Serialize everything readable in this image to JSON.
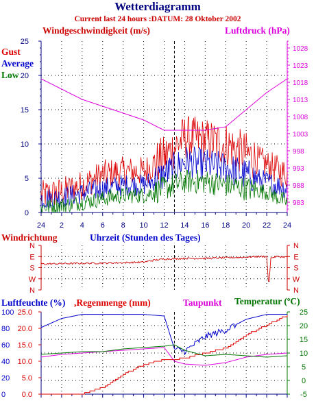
{
  "title": "Wetterdiagramm",
  "subtitle": "Current last 24 hours :DATUM: 28 Oktober 2002",
  "colors": {
    "axis_blue": "#000080",
    "wind_title": "#cc0000",
    "pressure": "#dd00dd",
    "gust": "#dd0000",
    "average": "#0000cc",
    "low": "#007700",
    "grid": "#000000",
    "humidity": "#0000cc",
    "rain": "#dd0000",
    "dewpoint": "#dd00dd",
    "temperature": "#007700"
  },
  "panels": {
    "wind": {
      "title_left": "Windgeschwindigkeit (m/s)",
      "title_right": "Luftdruck (hPa)",
      "legend": [
        "Gust",
        "Average",
        "Low"
      ],
      "x_ticks": [
        "24",
        "2",
        "4",
        "6",
        "8",
        "10",
        "12",
        "14",
        "16",
        "18",
        "20",
        "22",
        "24"
      ],
      "y_left_ticks": [
        "0",
        "5",
        "10",
        "15",
        "20",
        "25"
      ],
      "y_right_ticks": [
        "983",
        "988",
        "993",
        "998",
        "1003",
        "1008",
        "1013",
        "1018",
        "1023",
        "1028"
      ]
    },
    "direction": {
      "title_left": "Windrichtung",
      "title_center": "Uhrzeit (Stunden des Tages)",
      "labels": [
        "N",
        "W",
        "S",
        "E",
        "N"
      ]
    },
    "humidity": {
      "title_humidity": "Luftfeuchte (%)",
      "title_rain": ",Regenmenge (mm)",
      "title_dew": "Taupunkt",
      "title_temp": "Temperatur (ºC)",
      "y_left1_ticks": [
        "0",
        "20",
        "40",
        "60",
        "80",
        "100"
      ],
      "y_left2_ticks": [
        "0.0",
        "5.0",
        "10.0",
        "15.0",
        "20.0",
        "25.0"
      ],
      "y_right_ticks": [
        "-5",
        "0",
        "5",
        "10",
        "15",
        "20",
        "25"
      ]
    }
  },
  "chart_data": [
    {
      "type": "line",
      "x_unit": "hour of day",
      "x": [
        0,
        2,
        4,
        6,
        8,
        10,
        12,
        14,
        16,
        18,
        20,
        22,
        24
      ],
      "ylim": [
        0,
        25
      ],
      "y2lim": [
        980,
        1030
      ],
      "series": [
        {
          "name": "Gust",
          "axis": "left",
          "values": [
            2.5,
            3.0,
            4.0,
            5.5,
            6.0,
            6.0,
            8.0,
            11.0,
            10.5,
            10.0,
            8.5,
            7.0,
            5.5
          ]
        },
        {
          "name": "Average",
          "axis": "left",
          "values": [
            2.0,
            2.2,
            2.8,
            3.5,
            4.0,
            4.0,
            5.5,
            7.5,
            7.0,
            6.5,
            5.5,
            4.5,
            3.5
          ]
        },
        {
          "name": "Low",
          "axis": "left",
          "values": [
            0.8,
            1.0,
            1.5,
            2.0,
            2.5,
            2.5,
            3.5,
            4.5,
            4.5,
            4.0,
            3.5,
            3.0,
            1.5
          ]
        },
        {
          "name": "Luftdruck (hPa)",
          "axis": "right",
          "values": [
            1019,
            1016,
            1013,
            1011,
            1009,
            1007,
            1004,
            1004,
            1004,
            1005,
            1010,
            1015,
            1019
          ]
        }
      ]
    },
    {
      "type": "line",
      "x_unit": "hour of day",
      "x": [
        0,
        4,
        8,
        10,
        11,
        12,
        14,
        16,
        18,
        20,
        21,
        22,
        22.2,
        22.4,
        23,
        24
      ],
      "y_labels": [
        "N",
        "W",
        "S",
        "E",
        "N"
      ],
      "ylim": [
        0,
        360
      ],
      "series": [
        {
          "name": "Windrichtung",
          "values": [
            210,
            215,
            220,
            225,
            240,
            250,
            255,
            255,
            260,
            265,
            270,
            270,
            20,
            260,
            270,
            265
          ]
        }
      ]
    },
    {
      "type": "line",
      "x_unit": "hour of day",
      "x": [
        0,
        2,
        4,
        6,
        8,
        10,
        12,
        13,
        14,
        16,
        18,
        20,
        22,
        24
      ],
      "y_left1_lim": [
        0,
        100
      ],
      "y_left2_lim": [
        0.0,
        25.0
      ],
      "y_right_lim": [
        -5,
        25
      ],
      "series": [
        {
          "name": "Luftfeuchte (%)",
          "axis": "left1",
          "values": [
            81,
            92,
            97,
            97,
            97,
            97,
            95,
            55,
            52,
            70,
            78,
            91,
            97,
            97
          ]
        },
        {
          "name": "Regenmenge (mm)",
          "axis": "left2",
          "values": [
            0.0,
            0.0,
            0.0,
            2.0,
            6.0,
            9.0,
            10.5,
            10.5,
            11.0,
            12.5,
            14.0,
            18.0,
            21.0,
            24.0
          ]
        },
        {
          "name": "Taupunkt",
          "axis": "right",
          "values": [
            8.5,
            9.5,
            10,
            10.5,
            11,
            11.5,
            12,
            7,
            6,
            5.5,
            6.5,
            8.5,
            9.5,
            10
          ]
        },
        {
          "name": "Temperatur (ºC)",
          "axis": "right",
          "values": [
            9.5,
            10,
            10.5,
            10.5,
            11.5,
            12,
            12.5,
            13,
            11,
            9,
            9.5,
            9,
            8.5,
            9
          ]
        }
      ]
    }
  ]
}
